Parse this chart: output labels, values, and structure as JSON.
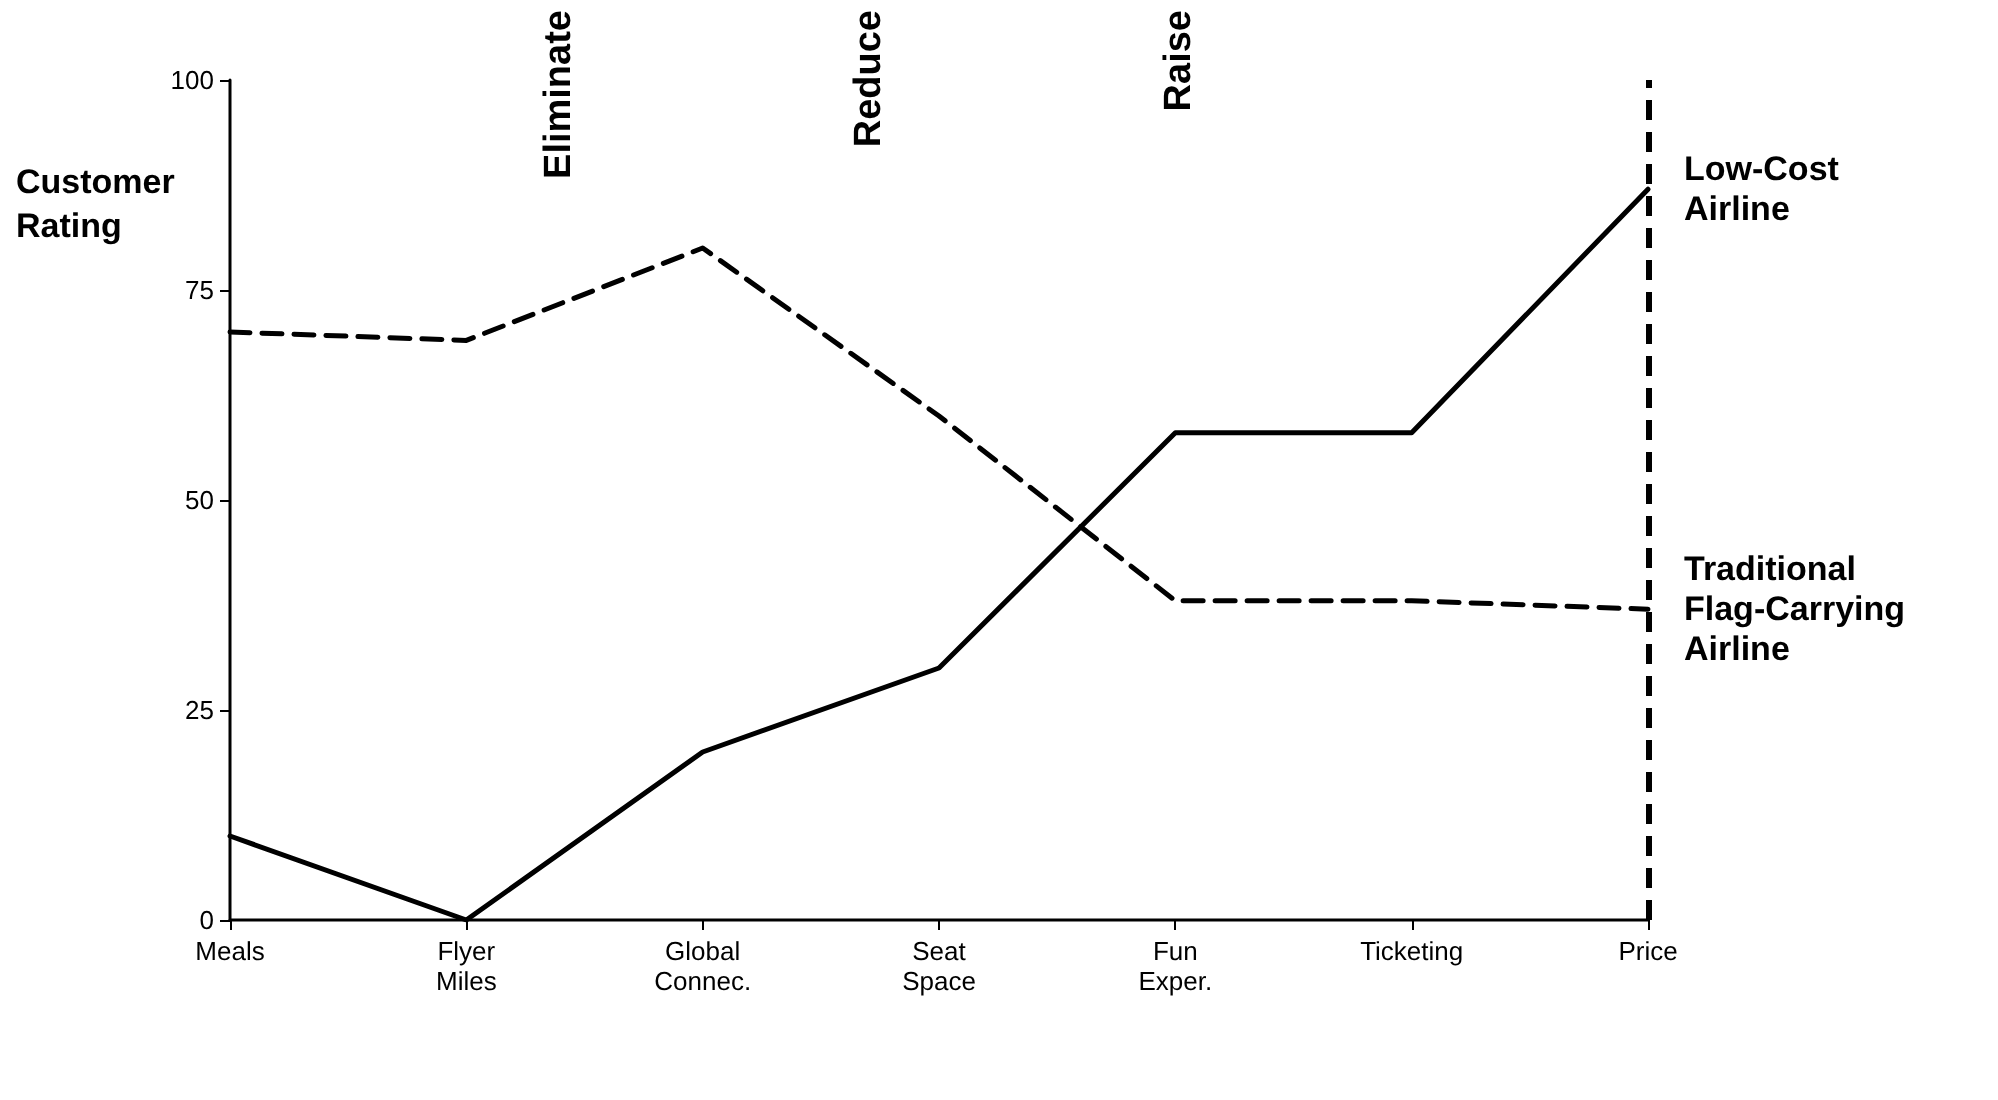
{
  "chart_data": {
    "type": "line",
    "ylabel": "Customer Rating",
    "categories": [
      "Meals",
      "Flyer\nMiles",
      "Global\nConnec.",
      "Seat\nSpace",
      "Fun\nExper.",
      "Ticketing",
      "Price"
    ],
    "ylim": [
      0,
      100
    ],
    "yticks": [
      0,
      25,
      50,
      75,
      100
    ],
    "series": [
      {
        "name": "Low-Cost Airline",
        "color": "#000000",
        "line_style": "solid",
        "values": [
          10,
          0,
          20,
          30,
          58,
          58,
          87
        ]
      },
      {
        "name": "Traditional Flag-Carrying Airline",
        "color": "#000000",
        "line_style": "dashed",
        "values": [
          70,
          69,
          80,
          60,
          38,
          38,
          37
        ]
      }
    ],
    "ref_lines": [
      {
        "axis": "x",
        "value": "Price",
        "color": "#000000",
        "line_style": "dashed"
      }
    ],
    "annotations": [
      "Eliminate",
      "Reduce",
      "Raise"
    ],
    "grid": false,
    "legend": false,
    "marker": "none"
  }
}
